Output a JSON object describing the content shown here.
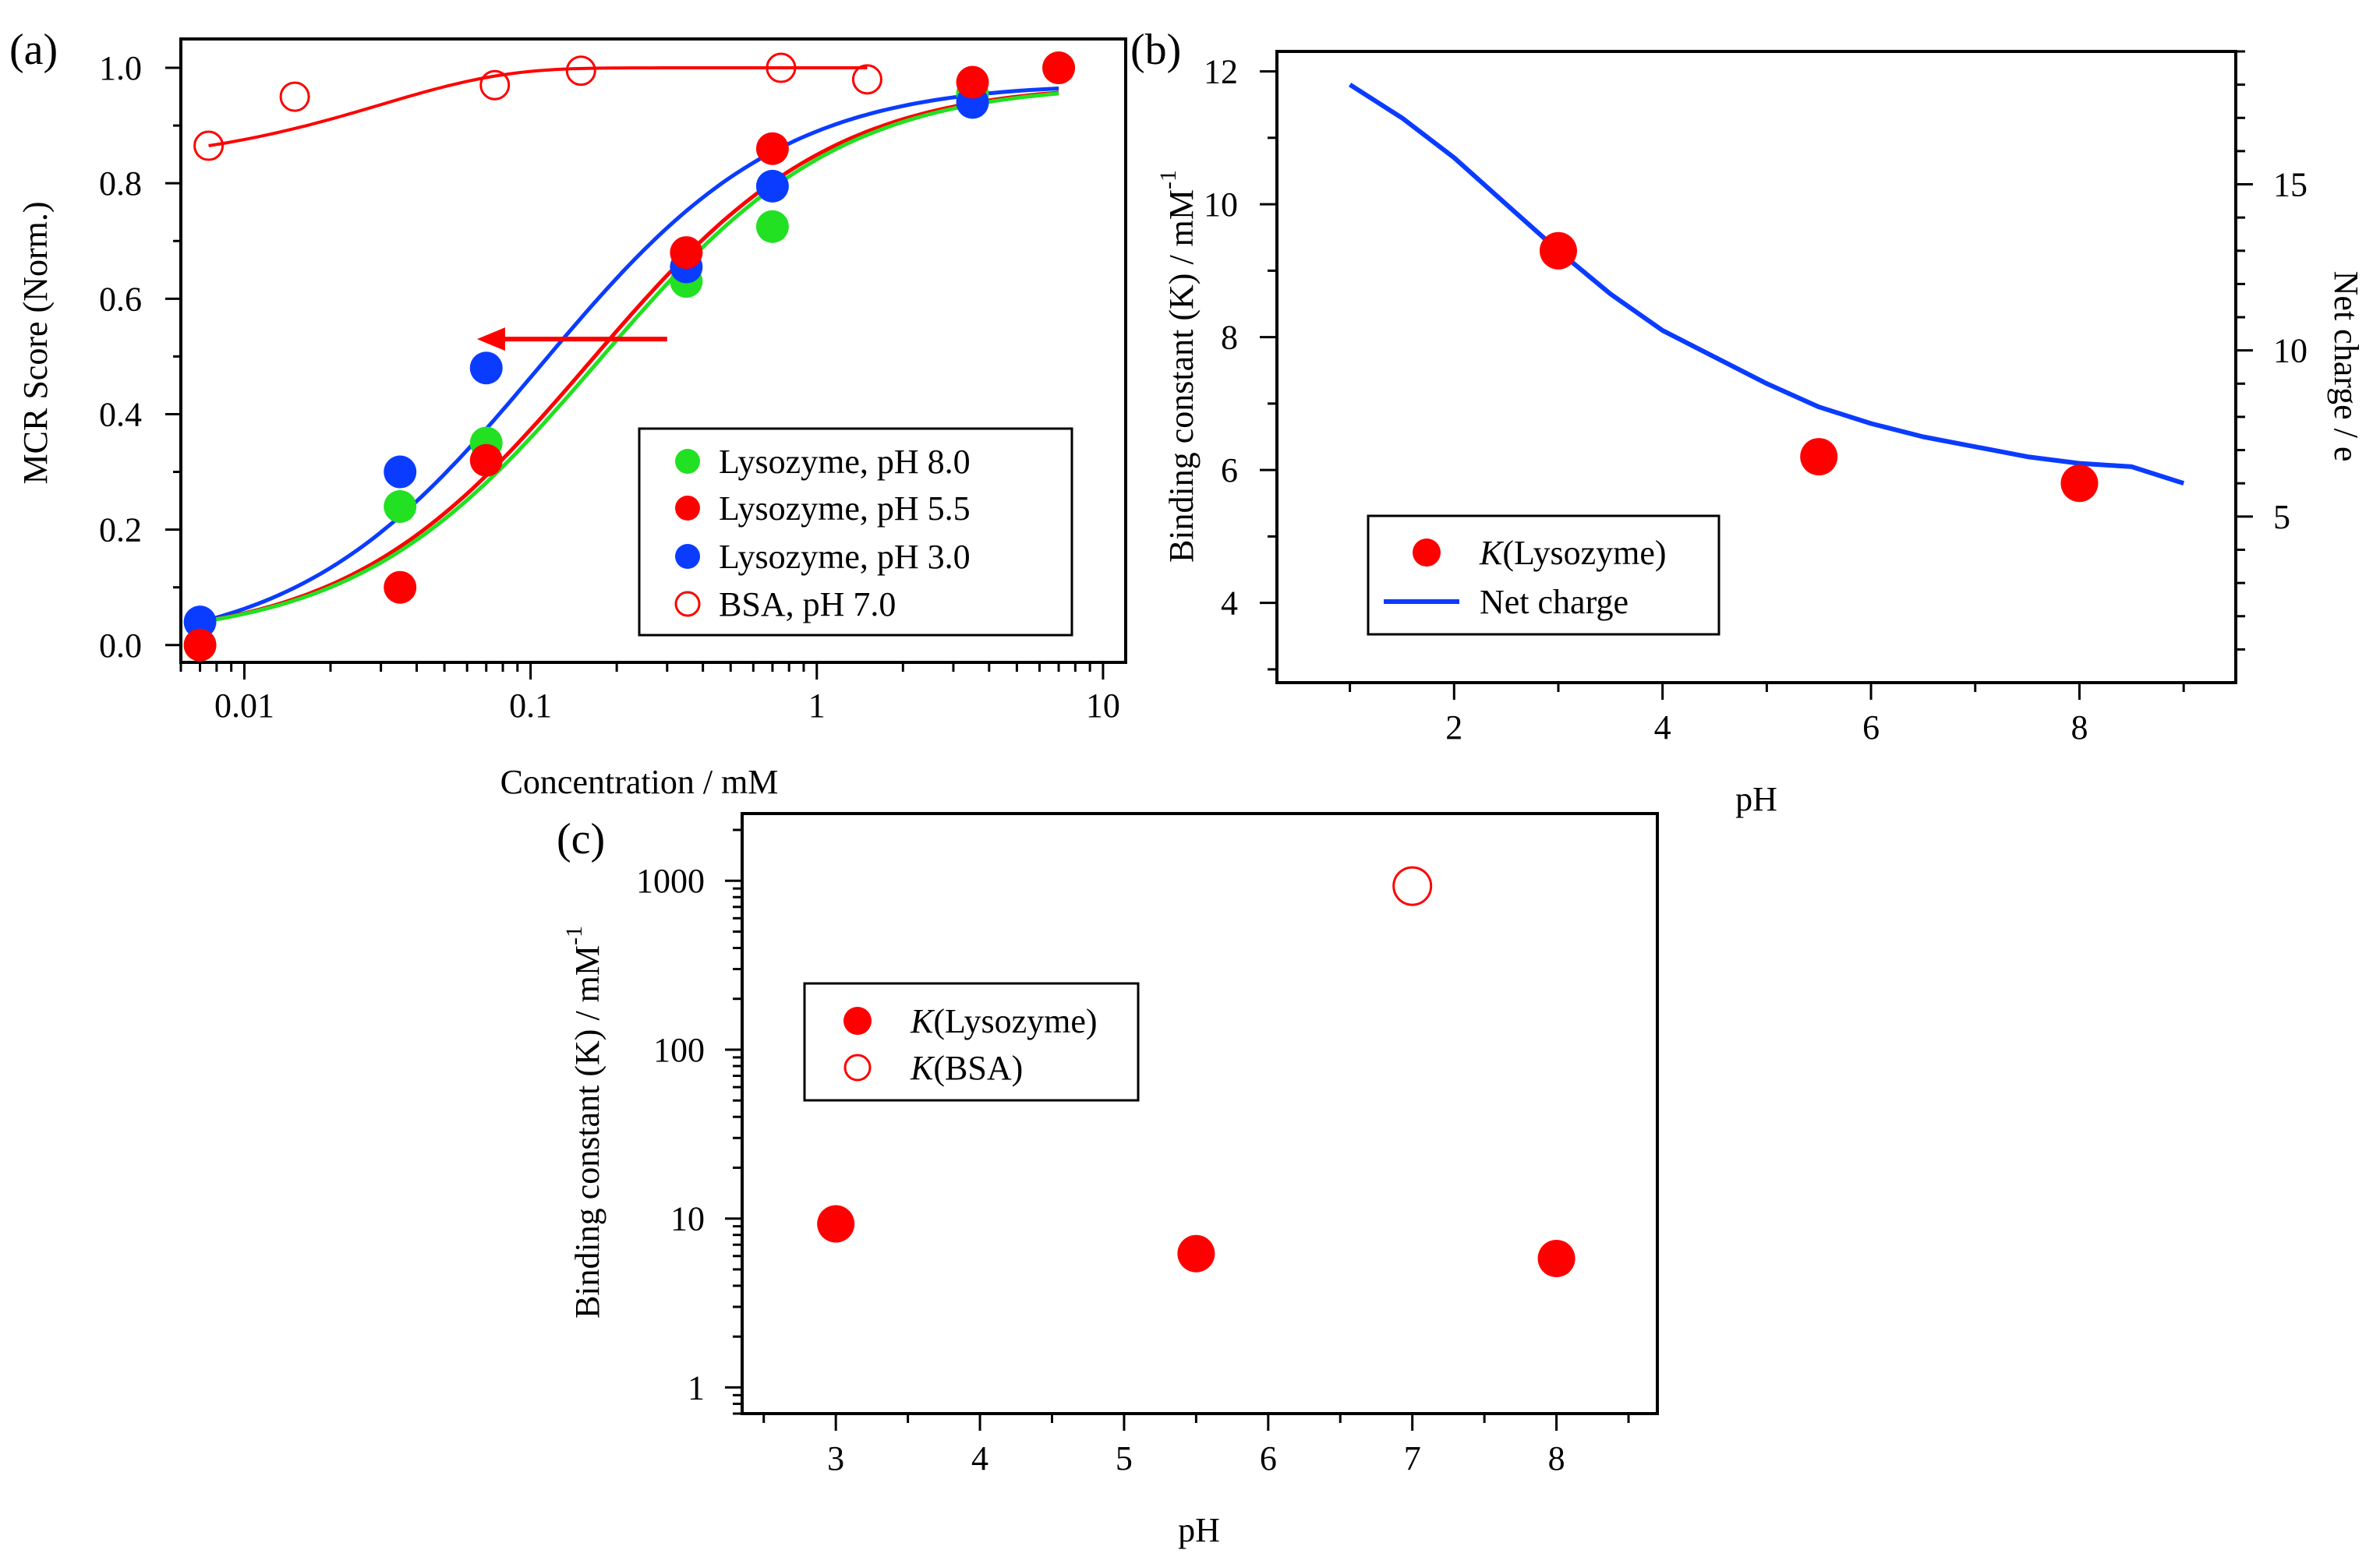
{
  "colors": {
    "green": "#22e022",
    "red": "#ff0000",
    "blue": "#0a3cff",
    "black": "#000000"
  },
  "chart_data": [
    {
      "panel_label": "(a)",
      "type": "scatter",
      "xscale": "log",
      "xlim": [
        0.006,
        12
      ],
      "ylim": [
        -0.03,
        1.05
      ],
      "xlabel": "Concentration / mM",
      "ylabel": "MCR Score (Norm.)",
      "xticks": [
        0.01,
        0.1,
        1,
        10
      ],
      "xtick_labels": [
        "0.01",
        "0.1",
        "1",
        "10"
      ],
      "yticks": [
        0.0,
        0.2,
        0.4,
        0.6,
        0.8,
        1.0
      ],
      "ytick_labels": [
        "0.0",
        "0.2",
        "0.4",
        "0.6",
        "0.8",
        "1.0"
      ],
      "legend_position": "bottom-right",
      "series": [
        {
          "name": "Lysozyme, pH 8.0",
          "color": "green",
          "marker": "filled",
          "x": [
            0.007,
            0.035,
            0.07,
            0.35,
            0.7,
            3.5,
            7
          ],
          "y": [
            0.0,
            0.24,
            0.35,
            0.63,
            0.725,
            0.955,
            1.0
          ],
          "fit": {
            "model": "langmuir",
            "K": 5.8
          }
        },
        {
          "name": "Lysozyme, pH 5.5",
          "color": "red",
          "marker": "filled",
          "x": [
            0.007,
            0.035,
            0.07,
            0.35,
            0.7,
            3.5,
            7
          ],
          "y": [
            0.0,
            0.1,
            0.32,
            0.68,
            0.86,
            0.975,
            1.0
          ],
          "fit": {
            "model": "langmuir",
            "K": 6.2
          }
        },
        {
          "name": "Lysozyme, pH 3.0",
          "color": "blue",
          "marker": "filled",
          "x": [
            0.007,
            0.035,
            0.07,
            0.35,
            0.7,
            3.5
          ],
          "y": [
            0.04,
            0.3,
            0.48,
            0.655,
            0.795,
            0.94
          ],
          "fit": {
            "model": "langmuir",
            "K": 9.3
          }
        },
        {
          "name": "BSA, pH 7.0",
          "color": "red",
          "marker": "open",
          "x": [
            0.0075,
            0.015,
            0.075,
            0.15,
            0.75,
            1.5
          ],
          "y": [
            0.865,
            0.95,
            0.97,
            0.995,
            1.0,
            0.98
          ],
          "fit": {
            "model": "langmuir",
            "K": 930
          }
        }
      ],
      "annotations": [
        {
          "type": "arrow",
          "color": "red",
          "from": [
            0.3,
            0.53
          ],
          "to": [
            0.065,
            0.53
          ]
        }
      ]
    },
    {
      "panel_label": "(b)",
      "type": "line",
      "xlim": [
        0.3,
        9.5
      ],
      "ylim": [
        2.8,
        12.3
      ],
      "xlabel": "pH",
      "ylabel": "Binding constant (K) / mM",
      "ylabel_superscript": "-1",
      "y2label": "Net charge / e",
      "y2lim": [
        0.0,
        19.0
      ],
      "xticks": [
        2,
        4,
        6,
        8
      ],
      "xtick_labels": [
        "2",
        "4",
        "6",
        "8"
      ],
      "yticks": [
        4,
        6,
        8,
        10,
        12
      ],
      "ytick_labels": [
        "4",
        "6",
        "8",
        "10",
        "12"
      ],
      "y2ticks": [
        5,
        10,
        15
      ],
      "y2tick_labels": [
        "5",
        "10",
        "15"
      ],
      "legend_position": "bottom-left",
      "series": [
        {
          "name": "K(Lysozyme)",
          "legend_italic": "K",
          "legend_rest": "(Lysozyme)",
          "color": "red",
          "marker": "filled",
          "axis": "left",
          "x": [
            3,
            5.5,
            8
          ],
          "y": [
            9.3,
            6.2,
            5.8
          ]
        },
        {
          "name": "Net charge",
          "color": "blue",
          "axis": "right",
          "x": [
            1.0,
            1.5,
            2.0,
            2.5,
            3.0,
            3.5,
            4.0,
            4.5,
            5.0,
            5.5,
            6.0,
            6.5,
            7.0,
            7.5,
            8.0,
            8.5,
            9.0
          ],
          "y": [
            18.0,
            17.0,
            15.8,
            14.4,
            13.0,
            11.7,
            10.6,
            9.8,
            9.0,
            8.3,
            7.8,
            7.4,
            7.1,
            6.8,
            6.6,
            6.5,
            6.0
          ]
        }
      ]
    },
    {
      "panel_label": "(c)",
      "type": "scatter",
      "yscale": "log",
      "xlim": [
        2.35,
        8.7
      ],
      "ylim": [
        0.7,
        2500
      ],
      "xlabel": "pH",
      "ylabel": "Binding constant (K) / mM",
      "ylabel_superscript": "-1",
      "xticks": [
        3,
        4,
        5,
        6,
        7,
        8
      ],
      "xtick_labels": [
        "3",
        "4",
        "5",
        "6",
        "7",
        "8"
      ],
      "yticks": [
        1,
        10,
        100,
        1000
      ],
      "ytick_labels": [
        "1",
        "10",
        "100",
        "1000"
      ],
      "legend_position": "middle-left",
      "series": [
        {
          "name": "K(Lysozyme)",
          "legend_italic": "K",
          "legend_rest": "(Lysozyme)",
          "color": "red",
          "marker": "filled",
          "x": [
            3,
            5.5,
            8
          ],
          "y": [
            9.3,
            6.2,
            5.8
          ]
        },
        {
          "name": "K(BSA)",
          "legend_italic": "K",
          "legend_rest": "(BSA)",
          "color": "red",
          "marker": "open",
          "x": [
            7
          ],
          "y": [
            930
          ]
        }
      ]
    }
  ]
}
